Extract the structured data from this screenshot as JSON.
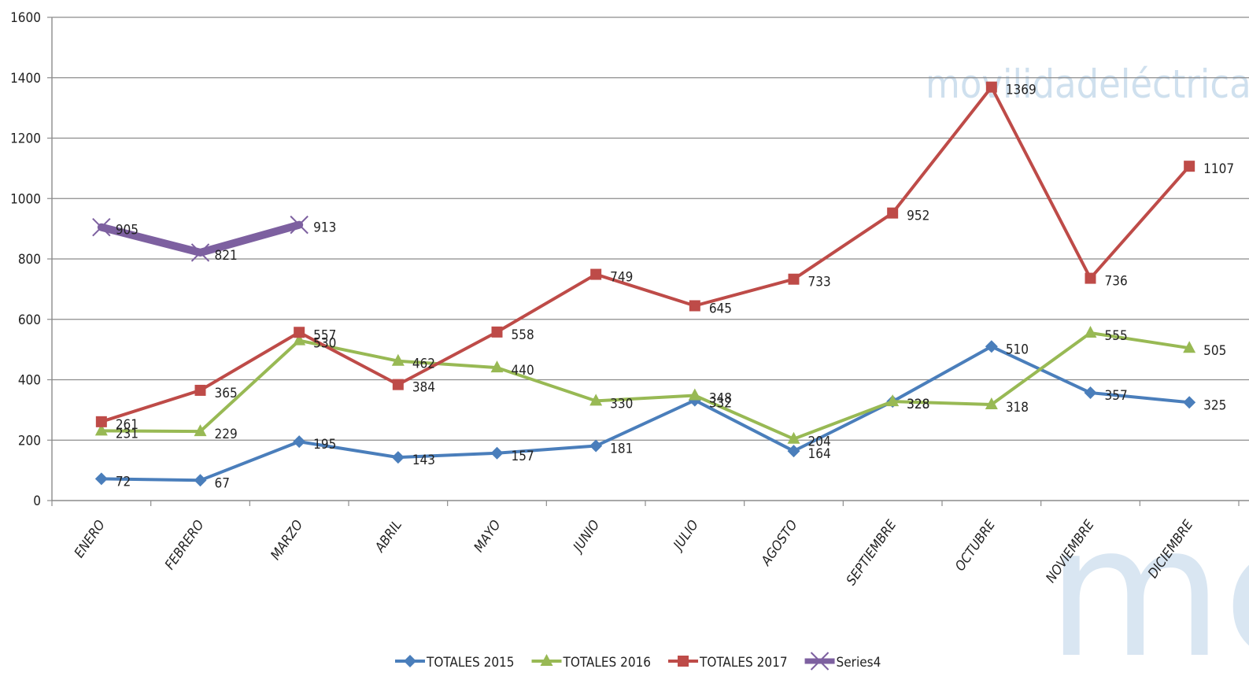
{
  "watermark": {
    "text": "movilidadeléctrica●co",
    "logo_text": "me",
    "color": "#c9dced"
  },
  "chart_data": {
    "type": "line",
    "title": "",
    "xlabel": "",
    "ylabel": "",
    "ylim": [
      0,
      1600
    ],
    "yticks": [
      0,
      200,
      400,
      600,
      800,
      1000,
      1200,
      1400,
      1600
    ],
    "grid": true,
    "legend_position": "bottom",
    "categories": [
      "ENERO",
      "FEBRERO",
      "MARZO",
      "ABRIL",
      "MAYO",
      "JUNIO",
      "JULIO",
      "AGOSTO",
      "SEPTIEMBRE",
      "OCTUBRE",
      "NOVIEMBRE",
      "DICIEMBRE"
    ],
    "series": [
      {
        "name": "TOTALES 2015",
        "color": "#4a7ebb",
        "marker": "diamond",
        "values": [
          72,
          67,
          195,
          143,
          157,
          181,
          332,
          164,
          328,
          510,
          357,
          325
        ]
      },
      {
        "name": "TOTALES 2016",
        "color": "#98b954",
        "marker": "triangle",
        "values": [
          231,
          229,
          530,
          462,
          440,
          330,
          348,
          204,
          328,
          318,
          555,
          505
        ]
      },
      {
        "name": "TOTALES 2017",
        "color": "#be4b48",
        "marker": "square",
        "values": [
          261,
          365,
          557,
          384,
          558,
          749,
          645,
          733,
          952,
          1369,
          736,
          1107
        ]
      },
      {
        "name": "Series4",
        "color": "#7d60a0",
        "marker": "x",
        "values": [
          905,
          821,
          913,
          null,
          null,
          null,
          null,
          null,
          null,
          null,
          null,
          null
        ]
      }
    ]
  }
}
